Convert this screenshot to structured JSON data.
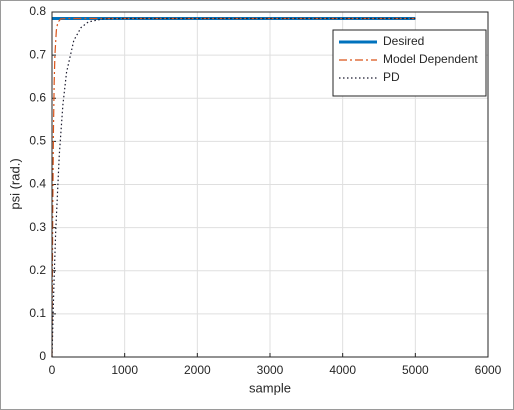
{
  "chart_data": {
    "type": "line",
    "xlabel": "sample",
    "ylabel": "psi (rad.)",
    "xlim": [
      0,
      6000
    ],
    "xticks": [
      0,
      1000,
      2000,
      3000,
      4000,
      5000,
      6000
    ],
    "ylim": [
      0,
      0.8
    ],
    "yticks": [
      0,
      0.1,
      0.2,
      0.3,
      0.4,
      0.5,
      0.6,
      0.7,
      0.8
    ],
    "grid": true,
    "legend": "upper right",
    "series": [
      {
        "name": "Desired",
        "color": "#0072bd",
        "style": "solid",
        "width": 3,
        "x": [
          0,
          5000
        ],
        "values": [
          0.785,
          0.785
        ]
      },
      {
        "name": "Model Dependent",
        "color": "#d95319",
        "style": "dashdot",
        "width": 1.2,
        "x": [
          0,
          5,
          10,
          20,
          30,
          40,
          60,
          80,
          120,
          200,
          5000
        ],
        "values": [
          0,
          0.191,
          0.335,
          0.526,
          0.636,
          0.7,
          0.758,
          0.776,
          0.784,
          0.785,
          0.785
        ]
      },
      {
        "name": "PD",
        "color": "#1a1a2e",
        "style": "dotted",
        "width": 1.2,
        "x": [
          0,
          25,
          50,
          100,
          150,
          200,
          300,
          400,
          500,
          700,
          1000,
          5000
        ],
        "values": [
          0,
          0.16,
          0.287,
          0.468,
          0.585,
          0.66,
          0.734,
          0.764,
          0.777,
          0.784,
          0.785,
          0.785
        ]
      }
    ]
  }
}
